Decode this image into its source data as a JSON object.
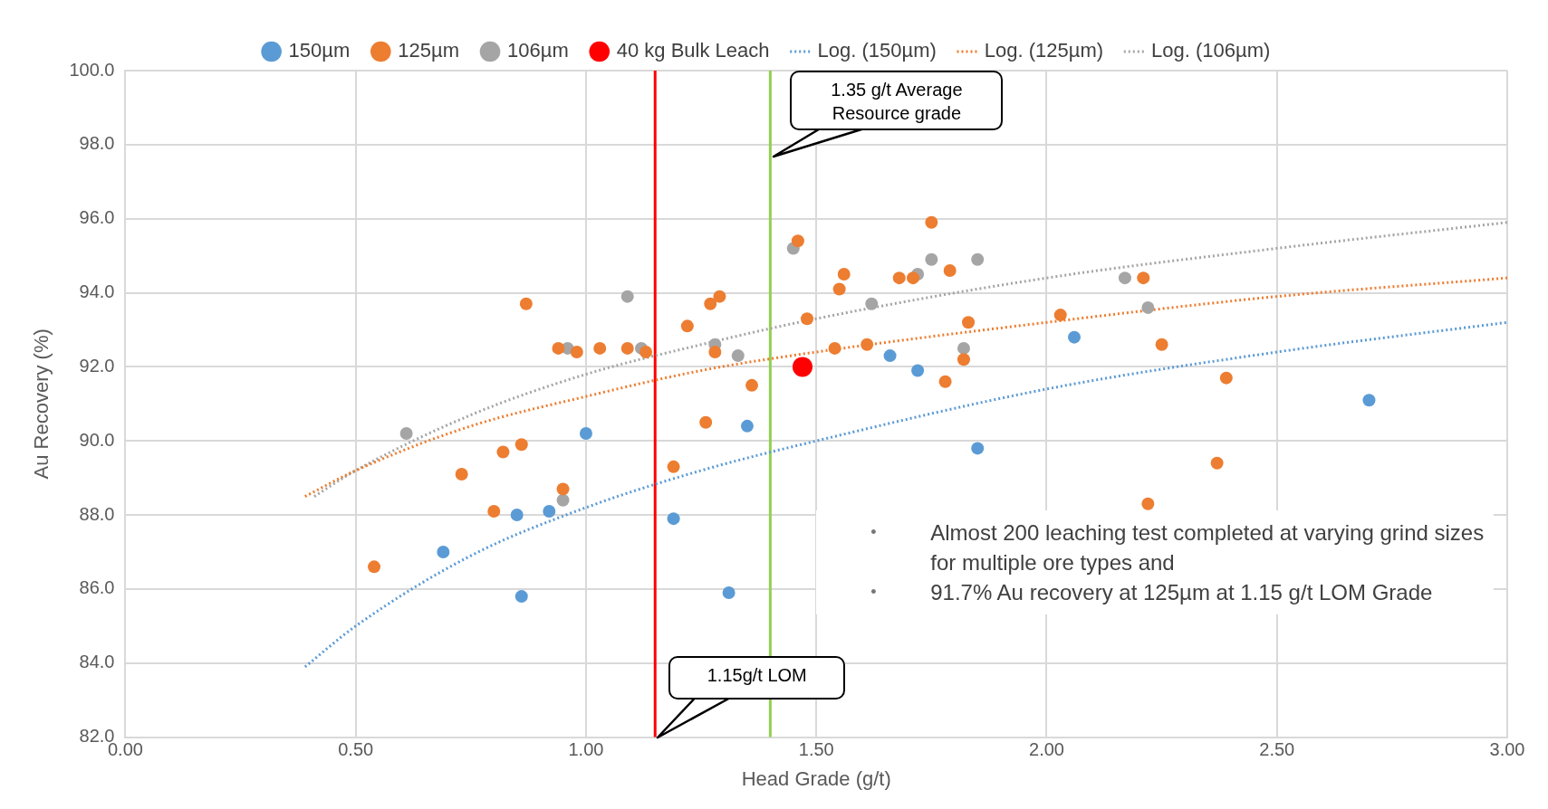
{
  "chart_data": {
    "type": "scatter",
    "xlabel": "Head Grade (g/t)",
    "ylabel": "Au Recovery (%)",
    "xlim": [
      0,
      3
    ],
    "xticks": [
      {
        "value": 0,
        "label": "0.00"
      },
      {
        "value": 0.5,
        "label": "0.50"
      },
      {
        "value": 1,
        "label": "1.00"
      },
      {
        "value": 1.5,
        "label": "1.50"
      },
      {
        "value": 2,
        "label": "2.00"
      },
      {
        "value": 2.5,
        "label": "2.50"
      },
      {
        "value": 3,
        "label": "3.00"
      }
    ],
    "ylim": [
      82,
      100
    ],
    "yticks": [
      {
        "value": 82,
        "label": "82.0"
      },
      {
        "value": 84,
        "label": "84.0"
      },
      {
        "value": 86,
        "label": "86.0"
      },
      {
        "value": 88,
        "label": "88.0"
      },
      {
        "value": 90,
        "label": "90.0"
      },
      {
        "value": 92,
        "label": "92.0"
      },
      {
        "value": 94,
        "label": "94.0"
      },
      {
        "value": 96,
        "label": "96.0"
      },
      {
        "value": 98,
        "label": "98.0"
      },
      {
        "value": 100,
        "label": "100.0"
      }
    ],
    "grid": true,
    "legend": "top",
    "marker": "circle",
    "series": [
      {
        "name": "150µm",
        "color": "#5b9bd5",
        "x": [
          0.85,
          0.86,
          0.69,
          0.92,
          1.0,
          1.19,
          1.31,
          1.35,
          1.66,
          1.72,
          1.85,
          2.06,
          2.7
        ],
        "values": [
          88.0,
          85.8,
          87.0,
          88.1,
          90.2,
          87.9,
          85.9,
          90.4,
          92.3,
          91.9,
          89.8,
          92.8,
          91.1
        ]
      },
      {
        "name": "125µm",
        "color": "#ed7d31",
        "x": [
          0.54,
          0.73,
          0.8,
          0.82,
          0.86,
          0.87,
          0.94,
          0.95,
          0.98,
          1.03,
          1.09,
          1.13,
          1.19,
          1.22,
          1.26,
          1.27,
          1.28,
          1.29,
          1.36,
          1.46,
          1.48,
          1.54,
          1.55,
          1.56,
          1.61,
          1.68,
          1.71,
          1.75,
          1.78,
          1.79,
          1.83,
          1.82,
          2.03,
          2.21,
          2.22,
          2.25,
          2.37,
          2.39
        ],
        "values": [
          86.6,
          89.1,
          88.1,
          89.7,
          89.9,
          93.7,
          92.5,
          88.7,
          92.4,
          92.5,
          92.5,
          92.4,
          89.3,
          93.1,
          90.5,
          93.7,
          92.4,
          93.9,
          91.5,
          95.4,
          93.3,
          92.5,
          94.1,
          94.5,
          92.6,
          94.4,
          94.4,
          95.9,
          91.6,
          94.6,
          93.2,
          92.2,
          93.4,
          94.4,
          88.3,
          92.6,
          89.4,
          91.7
        ]
      },
      {
        "name": "106µm",
        "color": "#a5a5a5",
        "x": [
          0.61,
          0.95,
          0.96,
          1.09,
          1.12,
          1.28,
          1.33,
          1.45,
          1.62,
          1.72,
          1.75,
          1.82,
          1.85,
          2.17,
          2.22
        ],
        "values": [
          90.2,
          88.4,
          92.5,
          93.9,
          92.5,
          92.6,
          92.3,
          95.2,
          93.7,
          94.5,
          94.9,
          92.5,
          94.9,
          94.4,
          93.6
        ]
      },
      {
        "name": "40 kg Bulk Leach",
        "color": "#ff0000",
        "x": [
          1.47
        ],
        "values": [
          92.0
        ]
      },
      {
        "name": "Log. (150µm)",
        "type": "line",
        "marker": "none",
        "line_style": "dotted",
        "color": "#5b9bd5",
        "x": [
          0.39,
          0.5,
          0.75,
          1,
          1.25,
          1.5,
          2,
          2.5,
          3
        ],
        "values": [
          83.9,
          85.0,
          86.9,
          88.2,
          89.2,
          90.0,
          91.4,
          92.4,
          93.2
        ]
      },
      {
        "name": "Log. (125µm)",
        "type": "line",
        "marker": "none",
        "line_style": "dotted",
        "color": "#ed7d31",
        "x": [
          0.39,
          0.5,
          0.75,
          1,
          1.25,
          1.5,
          2,
          2.5,
          3
        ],
        "values": [
          88.5,
          89.2,
          90.4,
          91.2,
          91.9,
          92.4,
          93.2,
          93.9,
          94.4
        ]
      },
      {
        "name": "Log. (106µm)",
        "type": "line",
        "marker": "none",
        "line_style": "dotted",
        "color": "#a5a5a5",
        "x": [
          0.41,
          0.5,
          0.75,
          1,
          1.25,
          1.5,
          2,
          2.5,
          3
        ],
        "values": [
          88.5,
          89.2,
          90.7,
          91.8,
          92.6,
          93.3,
          94.4,
          95.2,
          95.9
        ]
      }
    ],
    "ref_lines": [
      {
        "axis": "x",
        "value": 1.15,
        "label": "1.15g/t LOM",
        "color": "#ff0000"
      },
      {
        "axis": "x",
        "value": 1.4,
        "label": "1.35 g/t Average Resource grade",
        "color": "#92d050"
      }
    ],
    "annotations": [
      "• Almost 200 leaching test completed at varying grind sizes for multiple ore types and",
      "• 91.7% Au recovery at 125µm at 1.15 g/t LOM Grade"
    ]
  }
}
